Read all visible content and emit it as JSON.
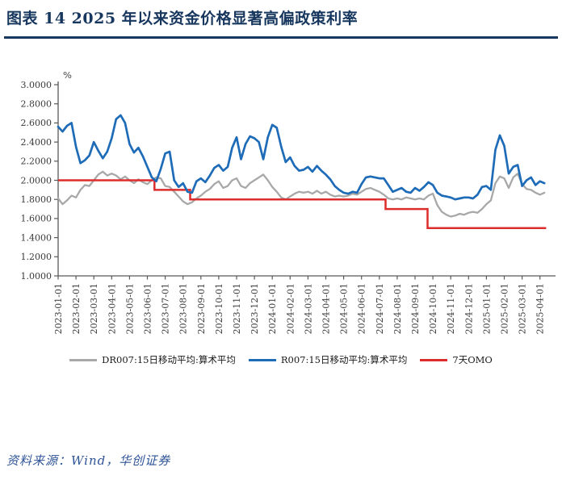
{
  "header": {
    "title": "图表 14  2025 年以来资金价格显著高偏政策利率",
    "title_color": "#17375e",
    "rule_color": "#17375e"
  },
  "footer": {
    "source": "资料来源：Wind，华创证券",
    "color": "#2e5496"
  },
  "chart_data": {
    "type": "line",
    "unit_label": "%",
    "ylim": [
      1.0,
      3.0
    ],
    "grid": false,
    "legend_position": "bottom",
    "axis_color": "#595959",
    "tick_label_color": "#3a3a3a",
    "y_ticks": [
      "3.0000",
      "2.8000",
      "2.6000",
      "2.4000",
      "2.2000",
      "2.0000",
      "1.8000",
      "1.6000",
      "1.4000",
      "1.2000",
      "1.0000"
    ],
    "x_ticks": [
      "2023-01-01",
      "2023-02-01",
      "2023-03-01",
      "2023-04-01",
      "2023-05-01",
      "2023-06-01",
      "2023-07-01",
      "2023-08-01",
      "2023-09-01",
      "2023-10-01",
      "2023-11-01",
      "2023-12-01",
      "2024-01-01",
      "2024-02-01",
      "2024-03-01",
      "2024-04-01",
      "2024-05-01",
      "2024-06-01",
      "2024-07-01",
      "2024-08-01",
      "2024-09-01",
      "2024-10-01",
      "2024-11-01",
      "2024-12-01",
      "2025-01-01",
      "2025-02-01",
      "2025-03-01",
      "2025-04-01"
    ],
    "samples_per_month": 4,
    "series": [
      {
        "id": "dr007",
        "name": "DR007:15日移动平均:算术平均",
        "color": "#a8a8a8",
        "kind": "line",
        "values": [
          1.81,
          1.75,
          1.79,
          1.84,
          1.82,
          1.9,
          1.95,
          1.94,
          2.0,
          2.06,
          2.09,
          2.05,
          2.07,
          2.05,
          2.01,
          2.04,
          2.0,
          1.97,
          2.01,
          1.98,
          1.96,
          2.0,
          2.03,
          2.02,
          1.94,
          1.93,
          1.88,
          1.83,
          1.78,
          1.75,
          1.77,
          1.81,
          1.84,
          1.88,
          1.91,
          1.96,
          1.99,
          1.92,
          1.94,
          2.0,
          2.02,
          1.94,
          1.92,
          1.97,
          2.0,
          2.03,
          2.06,
          2.0,
          1.93,
          1.88,
          1.82,
          1.8,
          1.83,
          1.86,
          1.88,
          1.87,
          1.88,
          1.86,
          1.89,
          1.86,
          1.88,
          1.85,
          1.83,
          1.84,
          1.83,
          1.84,
          1.86,
          1.85,
          1.88,
          1.91,
          1.92,
          1.9,
          1.88,
          1.85,
          1.81,
          1.8,
          1.81,
          1.8,
          1.82,
          1.81,
          1.8,
          1.81,
          1.8,
          1.84,
          1.86,
          1.74,
          1.67,
          1.64,
          1.62,
          1.63,
          1.65,
          1.64,
          1.66,
          1.67,
          1.66,
          1.7,
          1.75,
          1.79,
          1.97,
          2.04,
          2.02,
          1.92,
          2.03,
          2.07,
          1.96,
          1.91,
          1.9,
          1.87,
          1.85,
          1.87
        ]
      },
      {
        "id": "r007",
        "name": "R007:15日移动平均:算术平均",
        "color": "#1e6bb8",
        "kind": "line",
        "values": [
          2.56,
          2.51,
          2.57,
          2.6,
          2.35,
          2.18,
          2.21,
          2.26,
          2.4,
          2.31,
          2.23,
          2.3,
          2.44,
          2.64,
          2.68,
          2.6,
          2.38,
          2.29,
          2.34,
          2.25,
          2.14,
          2.03,
          1.99,
          2.12,
          2.28,
          2.3,
          2.0,
          1.93,
          1.97,
          1.88,
          1.87,
          1.99,
          2.02,
          1.98,
          2.05,
          2.13,
          2.16,
          2.1,
          2.14,
          2.34,
          2.45,
          2.22,
          2.38,
          2.46,
          2.44,
          2.4,
          2.22,
          2.45,
          2.58,
          2.55,
          2.35,
          2.19,
          2.24,
          2.15,
          2.1,
          2.11,
          2.14,
          2.09,
          2.15,
          2.1,
          2.06,
          2.01,
          1.94,
          1.9,
          1.87,
          1.86,
          1.88,
          1.87,
          1.96,
          2.03,
          2.04,
          2.03,
          2.02,
          2.02,
          1.95,
          1.88,
          1.9,
          1.92,
          1.88,
          1.87,
          1.92,
          1.89,
          1.93,
          1.98,
          1.95,
          1.87,
          1.84,
          1.83,
          1.82,
          1.8,
          1.81,
          1.82,
          1.82,
          1.81,
          1.85,
          1.93,
          1.94,
          1.9,
          2.32,
          2.47,
          2.36,
          2.07,
          2.14,
          2.16,
          1.94,
          2.0,
          2.03,
          1.95,
          1.99,
          1.97
        ]
      },
      {
        "id": "omo-7d",
        "name": "7天OMO",
        "color": "#dd2c2c",
        "kind": "step",
        "segments": [
          [
            0.0,
            5.4,
            2.0
          ],
          [
            5.4,
            7.4,
            1.9
          ],
          [
            7.4,
            18.35,
            1.8
          ],
          [
            18.35,
            20.7,
            1.7
          ],
          [
            20.7,
            27.35,
            1.5
          ]
        ]
      }
    ]
  }
}
